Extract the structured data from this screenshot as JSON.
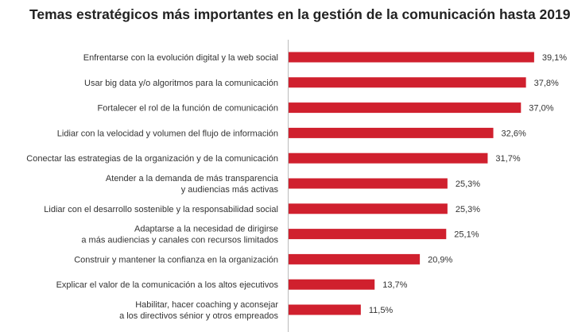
{
  "chart_data": {
    "type": "bar",
    "orientation": "horizontal",
    "title": "Temas estratégicos más importantes en la gestión de la comunicación hasta 2019",
    "color": "#d0202e",
    "categories": [
      "Enfrentarse con la evolución digital y la web social",
      "Usar big data y/o algoritmos para la comunicación",
      "Fortalecer el rol de la función de comunicación",
      "Lidiar con la velocidad y volumen del flujo de información",
      "Conectar las estrategias de la organización y de la comunicación",
      "Atender a la demanda de más transparencia\ny audiencias más activas",
      "Lidiar con el desarrollo sostenible y la responsabilidad social",
      "Adaptarse a la necesidad de dirigirse\na más audiencias y canales con recursos limitados",
      "Construir y mantener la confianza en la organización",
      "Explicar el valor de la comunicación a los altos ejecutivos",
      "Habilitar, hacer coaching y aconsejar\na los directivos sénior y otros empreados"
    ],
    "values": [
      39.1,
      37.8,
      37.0,
      32.6,
      31.7,
      25.3,
      25.3,
      25.1,
      20.9,
      13.7,
      11.5
    ],
    "value_labels": [
      "39,1%",
      "37,8%",
      "37,0%",
      "32,6%",
      "31,7%",
      "25,3%",
      "25,3%",
      "25,1%",
      "20,9%",
      "13,7%",
      "11,5%"
    ],
    "xlim": [
      0,
      42
    ],
    "grid": false,
    "legend": "none"
  }
}
